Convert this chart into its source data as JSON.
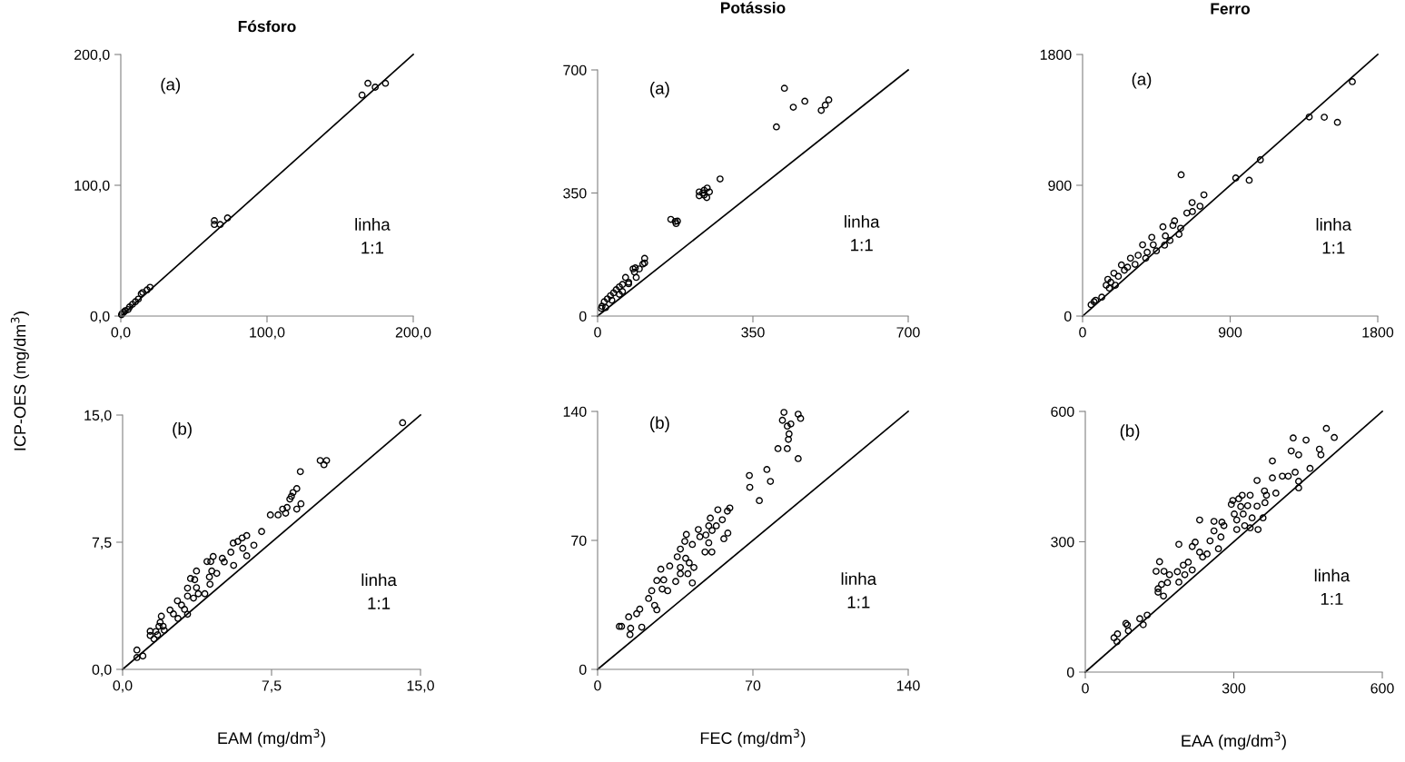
{
  "chart_data": [
    {
      "type": "scatter",
      "title": "Fósforo",
      "ylabel": "ICP-OES (mg/dm$^{3}$)",
      "marker": "circle",
      "annotations": [
        "(a)",
        "linha\n1:1"
      ],
      "xlim": [
        0,
        200
      ],
      "ylim": [
        0,
        200
      ],
      "xticks": [
        {
          "value": 0,
          "label": "0,0"
        },
        {
          "value": 100,
          "label": "100,0"
        },
        {
          "value": 200,
          "label": "200,0"
        }
      ],
      "yticks": [
        {
          "value": 0,
          "label": "0,0"
        },
        {
          "value": 100,
          "label": "100,0"
        },
        {
          "value": 200,
          "label": "200,0"
        }
      ],
      "series": [
        {
          "color": "#000000",
          "x": [
            165,
            169,
            174,
            181,
            64,
            64,
            68,
            73,
            20,
            18,
            15,
            14,
            12,
            10,
            8,
            6,
            5,
            3,
            2,
            1,
            0.5
          ],
          "values": [
            169,
            178,
            175,
            178,
            73,
            70,
            70,
            75,
            22,
            20,
            18,
            17,
            13,
            11,
            9,
            7,
            5,
            4,
            3,
            2,
            1
          ]
        },
        {
          "type": "line",
          "color": "#000000",
          "marker": "none",
          "line_style": "solid",
          "x": [
            0,
            200
          ],
          "values": [
            0,
            200
          ]
        }
      ]
    },
    {
      "type": "scatter",
      "title": "Potássio",
      "marker": "circle",
      "annotations": [
        "(a)",
        "linha\n1:1"
      ],
      "xlim": [
        0,
        700
      ],
      "ylim": [
        0,
        700
      ],
      "xticks": [
        0,
        350,
        700
      ],
      "yticks": [
        0,
        350,
        700
      ],
      "series": [
        {
          "color": "#000000",
          "x": [
            403,
            421,
            441,
            467,
            504,
            513,
            521,
            276,
            229,
            229,
            240,
            247,
            252,
            246,
            237,
            240,
            165,
            175,
            180,
            177,
            106,
            106,
            102,
            85,
            80,
            87,
            63,
            70,
            56,
            49,
            42,
            36,
            29,
            22,
            15,
            10,
            8,
            18,
            32,
            49,
            56,
            70,
            83,
            94
          ],
          "values": [
            538,
            648,
            594,
            611,
            585,
            600,
            615,
            390,
            353,
            342,
            358,
            364,
            353,
            337,
            350,
            344,
            275,
            269,
            270,
            263,
            164,
            151,
            148,
            137,
            134,
            110,
            110,
            92,
            90,
            83,
            75,
            66,
            58,
            49,
            41,
            28,
            22,
            24,
            45,
            62,
            70,
            96,
            125,
            134
          ]
        },
        {
          "type": "line",
          "color": "#000000",
          "marker": "none",
          "line_style": "solid",
          "x": [
            0,
            700
          ],
          "values": [
            0,
            700
          ]
        }
      ]
    },
    {
      "type": "scatter",
      "title": "Ferro",
      "marker": "circle",
      "annotations": [
        "(a)",
        "linha\n1:1"
      ],
      "xlim": [
        0,
        1800
      ],
      "ylim": [
        0,
        1800
      ],
      "xticks": [
        0,
        900,
        1800
      ],
      "yticks": [
        0,
        900,
        1800
      ],
      "series": [
        {
          "color": "#000000",
          "x": [
            1645,
            1382,
            1474,
            1554,
            1084,
            934,
            1016,
            601,
            740,
            716,
            668,
            670,
            636,
            598,
            561,
            551,
            588,
            490,
            505,
            422,
            431,
            500,
            450,
            366,
            394,
            339,
            292,
            320,
            274,
            237,
            191,
            218,
            154,
            144,
            200,
            163,
            117,
            80,
            52,
            70,
            533,
            385,
            255,
            172
          ],
          "values": [
            1613,
            1370,
            1368,
            1333,
            1075,
            950,
            935,
            972,
            834,
            756,
            781,
            719,
            709,
            604,
            655,
            624,
            562,
            614,
            552,
            542,
            490,
            488,
            449,
            490,
            439,
            418,
            398,
            356,
            336,
            352,
            295,
            274,
            253,
            212,
            212,
            192,
            130,
            109,
            78,
            99,
            521,
            398,
            315,
            233
          ]
        },
        {
          "type": "line",
          "color": "#000000",
          "marker": "none",
          "line_style": "solid",
          "x": [
            0,
            1800
          ],
          "values": [
            0,
            1800
          ]
        }
      ]
    },
    {
      "type": "scatter",
      "xlabel": "EAM (mg/dm$^{3}$)",
      "marker": "circle",
      "annotations": [
        "(b)",
        "linha\n1:1"
      ],
      "xlim": [
        0,
        15
      ],
      "ylim": [
        0,
        15
      ],
      "xticks": [
        {
          "value": 0,
          "label": "0,0"
        },
        {
          "value": 7.5,
          "label": "7,5"
        },
        {
          "value": 15,
          "label": "15,0"
        }
      ],
      "yticks": [
        {
          "value": 0,
          "label": "0,0"
        },
        {
          "value": 7.5,
          "label": "7,5"
        },
        {
          "value": 15,
          "label": "15,0"
        }
      ],
      "series": [
        {
          "color": "#000000",
          "x": [
            14.1,
            9.95,
            10.27,
            10.14,
            8.95,
            8.77,
            8.58,
            8.5,
            8.42,
            8.98,
            8.77,
            8.28,
            8.06,
            7.83,
            8.21,
            7.44,
            7.0,
            6.25,
            6.02,
            5.57,
            6.05,
            6.25,
            6.61,
            5.8,
            5.45,
            5.59,
            5.02,
            5.12,
            4.56,
            4.25,
            4.44,
            3.72,
            4.49,
            4.74,
            4.37,
            4.4,
            3.42,
            3.63,
            3.27,
            3.72,
            4.14,
            3.81,
            3.57,
            3.27,
            2.76,
            2.97,
            3.27,
            3.12,
            2.39,
            2.79,
            2.56,
            1.95,
            1.89,
            2.04,
            2.1,
            1.83,
            1.39,
            1.67,
            1.39,
            1.58,
            1.76,
            0.72,
            0.72,
            1.02
          ],
          "values": [
            14.55,
            12.32,
            12.32,
            12.07,
            11.66,
            10.66,
            10.43,
            10.21,
            10.04,
            9.77,
            9.45,
            9.55,
            9.45,
            9.11,
            9.21,
            9.11,
            8.13,
            7.89,
            7.75,
            7.45,
            7.14,
            6.7,
            7.32,
            7.54,
            6.91,
            6.13,
            6.55,
            6.34,
            6.66,
            6.36,
            6.36,
            5.8,
            5.8,
            5.66,
            5.45,
            5.02,
            5.36,
            5.29,
            4.79,
            4.82,
            4.46,
            4.46,
            4.2,
            4.32,
            4.04,
            3.79,
            3.25,
            3.54,
            3.5,
            3.0,
            3.27,
            3.14,
            2.77,
            2.54,
            2.3,
            2.54,
            2.25,
            2.23,
            2.0,
            1.79,
            2.04,
            1.14,
            0.7,
            0.79
          ]
        },
        {
          "type": "line",
          "color": "#000000",
          "marker": "none",
          "line_style": "solid",
          "x": [
            0,
            15
          ],
          "values": [
            0,
            15
          ]
        }
      ]
    },
    {
      "type": "scatter",
      "xlabel": "FEC (mg/dm$^{3}$)",
      "marker": "circle",
      "annotations": [
        "(b)",
        "linha\n1:1"
      ],
      "xlim": [
        0,
        140
      ],
      "ylim": [
        0,
        140
      ],
      "xticks": [
        0,
        70,
        140
      ],
      "yticks": [
        0,
        70,
        140
      ],
      "series": [
        {
          "color": "#000000",
          "x": [
            84,
            90.4,
            91.5,
            83.3,
            87.1,
            85.5,
            86.3,
            86,
            81.3,
            85.5,
            90.4,
            76.3,
            68.4,
            68.6,
            77.9,
            72.9,
            59.6,
            58.5,
            54.2,
            56.2,
            50.8,
            53.5,
            50.1,
            51.6,
            48.8,
            45.4,
            46.1,
            58.7,
            56.9,
            50.1,
            48.4,
            51.5,
            40,
            39.3,
            42.7,
            37.3,
            35.9,
            39.7,
            41.3,
            37.3,
            43.4,
            40.7,
            42.7,
            37.3,
            35.2,
            32.5,
            28.5,
            26.7,
            29.8,
            29.1,
            31.6,
            24.4,
            23,
            25.7,
            26.7,
            19,
            17.6,
            14,
            10.8,
            9.8,
            14.9,
            14.6,
            19.9
          ],
          "values": [
            139.5,
            138.5,
            136.2,
            135.2,
            133.2,
            132,
            127.8,
            124.8,
            119.8,
            119.8,
            114.4,
            108.5,
            105.2,
            98.8,
            102,
            91.6,
            87.6,
            85.9,
            86.6,
            81.2,
            82.1,
            77.9,
            77.9,
            75.4,
            72.9,
            75.9,
            72,
            74,
            70.9,
            68.7,
            63.7,
            63.7,
            73.2,
            69.5,
            67.8,
            65.3,
            61.1,
            60.3,
            57.8,
            55.3,
            55.3,
            51.9,
            46.9,
            51.9,
            47.7,
            56.1,
            54.4,
            48.2,
            48.6,
            43.6,
            42.7,
            42.7,
            38.5,
            34.7,
            32.3,
            32.7,
            30.2,
            28.5,
            23.3,
            23.3,
            22.3,
            18.9,
            22.9
          ]
        },
        {
          "type": "line",
          "color": "#000000",
          "marker": "none",
          "line_style": "solid",
          "x": [
            0,
            140
          ],
          "values": [
            0,
            140
          ]
        }
      ]
    },
    {
      "type": "scatter",
      "xlabel": "EAA (mg/dm$^{3}$)",
      "marker": "circle",
      "annotations": [
        "(b)",
        "linha\n1:1"
      ],
      "xlim": [
        0,
        600
      ],
      "ylim": [
        0,
        600
      ],
      "xticks": [
        0,
        300,
        600
      ],
      "yticks": [
        0,
        300,
        600
      ],
      "series": [
        {
          "color": "#000000",
          "x": [
            487,
            503,
            420,
            446,
            473,
            476,
            416,
            431,
            378,
            454,
            424,
            398,
            410,
            378,
            431,
            431,
            347,
            362,
            366,
            385,
            333,
            317,
            298,
            310,
            328,
            295,
            314,
            363,
            347,
            301,
            319,
            359,
            337,
            306,
            322,
            306,
            349,
            333,
            231,
            260,
            276,
            280,
            260,
            274,
            252,
            269,
            222,
            216,
            189,
            231,
            237,
            246,
            208,
            198,
            216,
            186,
            201,
            189,
            150,
            143,
            159,
            170,
            154,
            166,
            147,
            147,
            158,
            110,
            125,
            117,
            82,
            85,
            87,
            58,
            65,
            64
          ],
          "values": [
            561,
            540,
            539,
            534,
            513,
            500,
            509,
            500,
            486,
            469,
            460,
            451,
            451,
            447,
            439,
            424,
            441,
            417,
            407,
            412,
            407,
            407,
            395,
            399,
            383,
            386,
            381,
            390,
            382,
            364,
            364,
            355,
            355,
            350,
            337,
            328,
            328,
            332,
            350,
            347,
            345,
            337,
            325,
            311,
            302,
            284,
            299,
            289,
            294,
            276,
            265,
            272,
            253,
            246,
            235,
            231,
            224,
            207,
            254,
            232,
            232,
            224,
            202,
            206,
            192,
            184,
            175,
            123,
            131,
            109,
            112,
            108,
            95,
            79,
            88,
            70
          ]
        },
        {
          "type": "line",
          "color": "#000000",
          "marker": "none",
          "line_style": "solid",
          "x": [
            0,
            600
          ],
          "values": [
            0,
            600
          ]
        }
      ]
    }
  ]
}
